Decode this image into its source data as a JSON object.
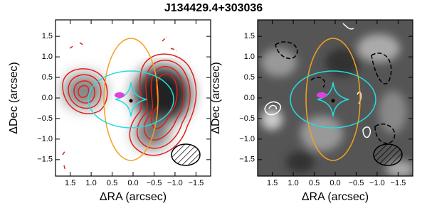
{
  "title": "J134429.4+303036",
  "chart_data": [
    {
      "type": "image",
      "xlabel": "ΔRA (arcsec)",
      "ylabel": "ΔDec (arcsec)",
      "xlim": [
        1.85,
        -1.85
      ],
      "ylim": [
        -1.9,
        1.9
      ],
      "xticks": [
        {
          "value": 1.5,
          "label": "1.5"
        },
        {
          "value": 1.0,
          "label": "1.0"
        },
        {
          "value": 0.5,
          "label": "0.5"
        },
        {
          "value": 0.0,
          "label": "0.0"
        },
        {
          "value": -0.5,
          "label": "−0.5"
        },
        {
          "value": -1.0,
          "label": "−1.0"
        },
        {
          "value": -1.5,
          "label": "−1.5"
        }
      ],
      "yticks": [
        {
          "value": -1.5,
          "label": "−1.5"
        },
        {
          "value": -1.0,
          "label": "−1.0"
        },
        {
          "value": -0.5,
          "label": "−0.5"
        },
        {
          "value": 0.0,
          "label": "0.0"
        },
        {
          "value": 0.5,
          "label": "0.5"
        },
        {
          "value": 1.0,
          "label": "1.0"
        },
        {
          "value": 1.5,
          "label": "1.5"
        }
      ]
    },
    {
      "type": "image",
      "xlabel": "ΔRA (arcsec)",
      "ylabel": "ΔDec (arcsec)",
      "xlim": [
        1.85,
        -1.85
      ],
      "ylim": [
        -1.9,
        1.9
      ],
      "xticks": [
        {
          "value": 1.5,
          "label": "1.5"
        },
        {
          "value": 1.0,
          "label": "1.0"
        },
        {
          "value": 0.5,
          "label": "0.5"
        },
        {
          "value": 0.0,
          "label": "0.0"
        },
        {
          "value": -0.5,
          "label": "−0.5"
        },
        {
          "value": -1.0,
          "label": "−1.0"
        },
        {
          "value": -1.5,
          "label": "−1.5"
        }
      ],
      "yticks": [
        {
          "value": -1.5,
          "label": "−1.5"
        },
        {
          "value": -1.0,
          "label": "−1.0"
        },
        {
          "value": -0.5,
          "label": "−0.5"
        },
        {
          "value": 0.0,
          "label": "0.0"
        },
        {
          "value": 0.5,
          "label": "0.5"
        },
        {
          "value": 1.0,
          "label": "1.0"
        },
        {
          "value": 1.5,
          "label": "1.5"
        }
      ]
    }
  ]
}
